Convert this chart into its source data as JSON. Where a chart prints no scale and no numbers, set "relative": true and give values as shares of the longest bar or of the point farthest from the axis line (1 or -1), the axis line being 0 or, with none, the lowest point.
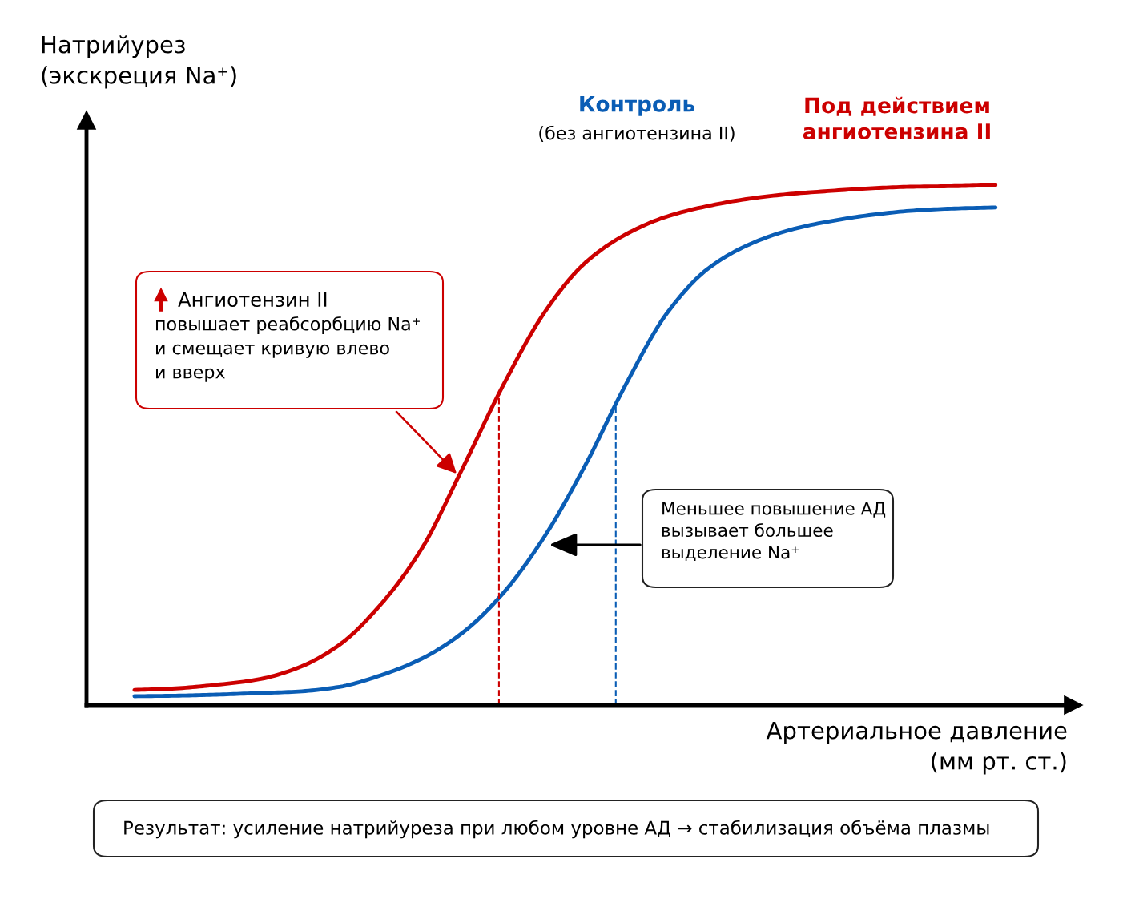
{
  "chart_data": {
    "type": "line",
    "relative": true,
    "grid": false,
    "legend": false,
    "marker": "none",
    "line_style": "solid",
    "ylabel": "Натрийурез\n(экскреция Na⁺)",
    "xlabel": "Артериальное давление\n(мм рт. ст.)",
    "categories": [
      null,
      null,
      null,
      null,
      null,
      null,
      null,
      null,
      null,
      null,
      null,
      null,
      null,
      null,
      null,
      null,
      null,
      null,
      null,
      null,
      null,
      null
    ],
    "series": [
      {
        "name": "Под действием ангиотензина II",
        "color": "#cc0000",
        "values": [
          0.029,
          0.032,
          0.039,
          0.049,
          0.072,
          0.116,
          0.193,
          0.3,
          0.455,
          0.616,
          0.755,
          0.851,
          0.906,
          0.94,
          0.96,
          0.974,
          0.983,
          0.989,
          0.994,
          0.997,
          0.998,
          1.0
        ]
      },
      {
        "name": "Контроль",
        "color": "#0a5db5",
        "values": [
          0.017,
          0.018,
          0.02,
          0.023,
          0.026,
          0.035,
          0.057,
          0.089,
          0.139,
          0.216,
          0.324,
          0.462,
          0.619,
          0.755,
          0.84,
          0.886,
          0.914,
          0.931,
          0.943,
          0.951,
          0.955,
          0.957
        ]
      }
    ],
    "annotations": [
      "(без ангиотензина II)",
      "Ангиотензин II\nповышает реабсорбцию Na⁺\nи смещает кривую влево\nи вверх",
      "Меньшее повышение АД\nвызывает большее\nвыделение Na⁺",
      "Результат: усиление натрийуреза при любом уровне АД → стабилизация объёма плазмы"
    ]
  }
}
